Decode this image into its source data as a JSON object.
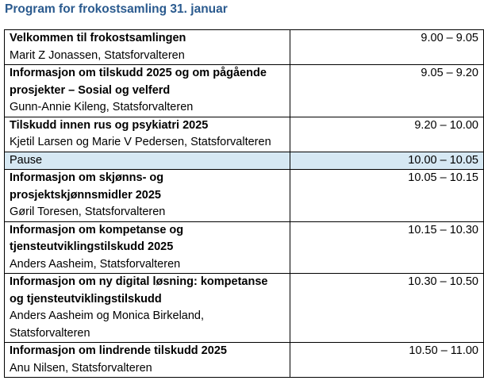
{
  "title": "Program for frokostsamling 31. januar",
  "colors": {
    "title": "#2a5a8e",
    "pause_highlight": "#d6e8f3"
  },
  "rows": [
    {
      "title": "Velkommen til frokostsamlingen",
      "speaker": "Marit Z Jonassen, Statsforvalteren",
      "time": "9.00 – 9.05"
    },
    {
      "title": "Informasjon om tilskudd 2025 og om pågående prosjekter – Sosial og velferd",
      "speaker": "Gunn-Annie Kileng, Statsforvalteren",
      "time": "9.05 – 9.20"
    },
    {
      "title": "Tilskudd innen rus og psykiatri 2025",
      "speaker": "Kjetil Larsen og Marie V Pedersen, Statsforvalteren",
      "time": "9.20 – 10.00"
    },
    {
      "label": "Pause",
      "time": "10.00 – 10.05"
    },
    {
      "title": "Informasjon om skjønns- og prosjektskjønnsmidler 2025",
      "speaker": "Gøril Toresen, Statsforvalteren",
      "time": "10.05 – 10.15"
    },
    {
      "title": "Informasjon om kompetanse og tjensteutviklingstilskudd 2025",
      "speaker": "Anders Aasheim, Statsforvalteren",
      "time": "10.15 – 10.30"
    },
    {
      "title": "Informasjon om ny digital løsning: kompetanse og tjensteutviklingstilskudd",
      "speaker": "Anders Aasheim og Monica Birkeland, Statsforvalteren",
      "time": "10.30 – 10.50"
    },
    {
      "title": "Informasjon om lindrende tilskudd 2025",
      "speaker": "Anu Nilsen, Statsforvalteren",
      "time": "10.50 – 11.00"
    }
  ]
}
